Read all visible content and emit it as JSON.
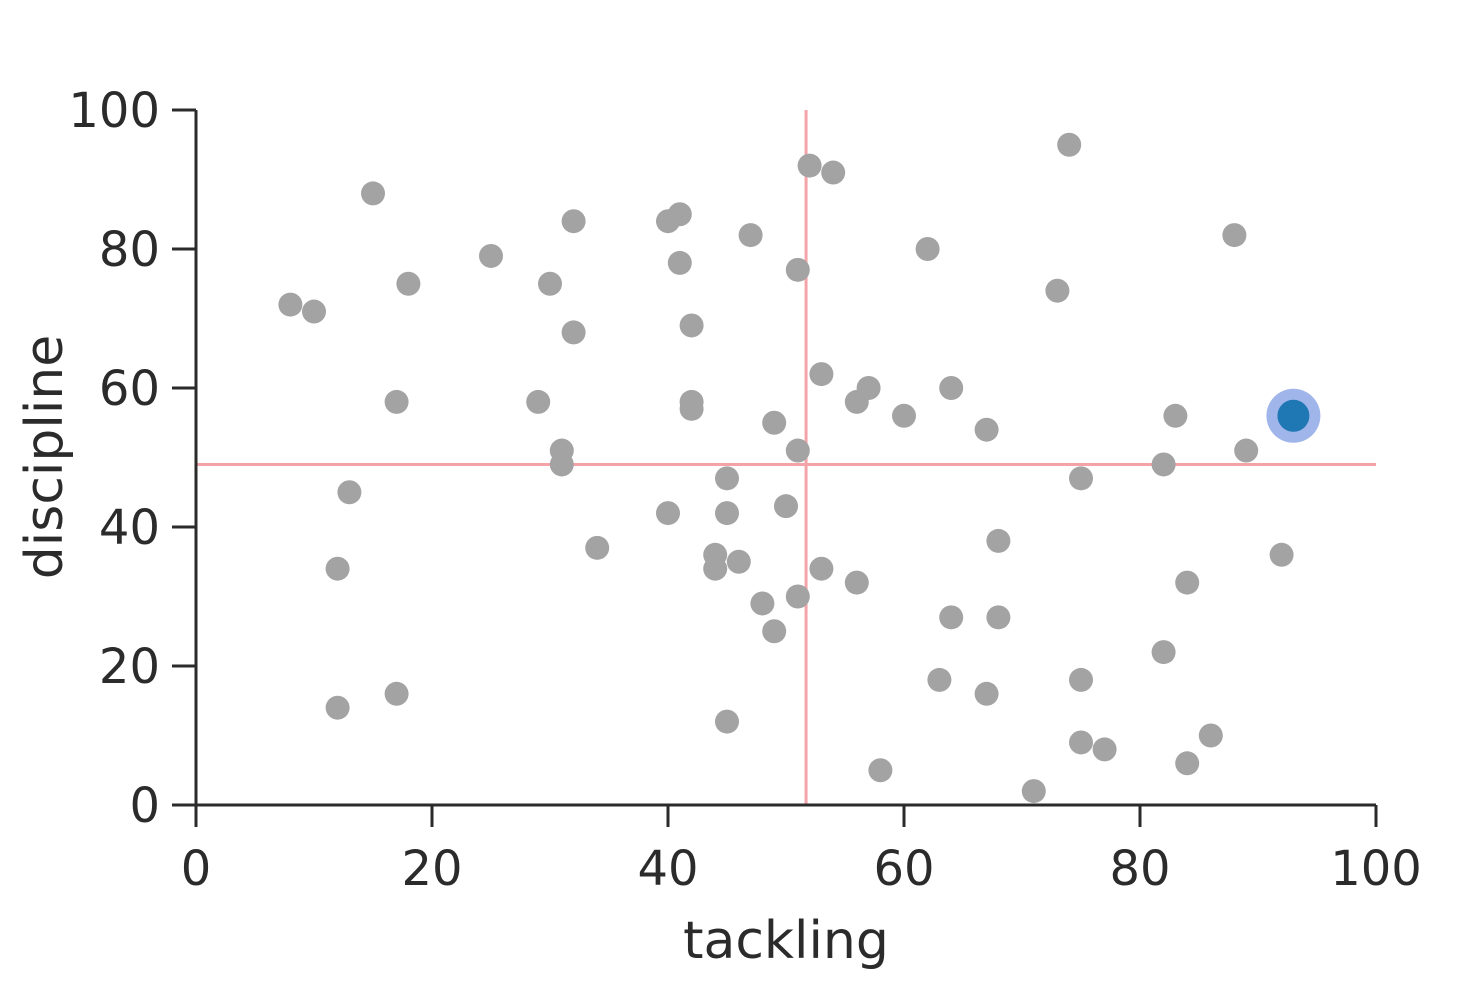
{
  "chart_data": {
    "type": "scatter",
    "xlabel": "tackling",
    "ylabel": "discipline",
    "xlim": [
      0,
      100
    ],
    "ylim": [
      0,
      100
    ],
    "xticks": [
      0,
      20,
      40,
      60,
      80,
      100
    ],
    "yticks": [
      0,
      20,
      40,
      60,
      80,
      100
    ],
    "grid": false,
    "reference_lines": {
      "x": 51.7,
      "y": 49
    },
    "reference_line_color": "#f4a3a8",
    "point_color": "#a3a3a3",
    "highlight_color": "#1f77b4",
    "highlight_halo_color": "#8fa8e6",
    "points": [
      [
        74,
        95
      ],
      [
        52,
        92
      ],
      [
        54,
        91
      ],
      [
        15,
        88
      ],
      [
        41,
        85
      ],
      [
        40,
        84
      ],
      [
        32,
        84
      ],
      [
        88,
        82
      ],
      [
        47,
        82
      ],
      [
        62,
        80
      ],
      [
        25,
        79
      ],
      [
        41,
        78
      ],
      [
        51,
        77
      ],
      [
        18,
        75
      ],
      [
        30,
        75
      ],
      [
        73,
        74
      ],
      [
        8,
        72
      ],
      [
        10,
        71
      ],
      [
        42,
        69
      ],
      [
        32,
        68
      ],
      [
        53,
        62
      ],
      [
        57,
        60
      ],
      [
        64,
        60
      ],
      [
        17,
        58
      ],
      [
        29,
        58
      ],
      [
        42,
        58
      ],
      [
        56,
        58
      ],
      [
        42,
        57
      ],
      [
        60,
        56
      ],
      [
        83,
        56
      ],
      [
        49,
        55
      ],
      [
        67,
        54
      ],
      [
        31,
        51
      ],
      [
        51,
        51
      ],
      [
        89,
        51
      ],
      [
        31,
        49
      ],
      [
        82,
        49
      ],
      [
        45,
        47
      ],
      [
        75,
        47
      ],
      [
        13,
        45
      ],
      [
        50,
        43
      ],
      [
        40,
        42
      ],
      [
        45,
        42
      ],
      [
        68,
        38
      ],
      [
        34,
        37
      ],
      [
        92,
        36
      ],
      [
        44,
        36
      ],
      [
        46,
        35
      ],
      [
        12,
        34
      ],
      [
        44,
        34
      ],
      [
        53,
        34
      ],
      [
        56,
        32
      ],
      [
        84,
        32
      ],
      [
        51,
        30
      ],
      [
        48,
        29
      ],
      [
        64,
        27
      ],
      [
        68,
        27
      ],
      [
        49,
        25
      ],
      [
        82,
        22
      ],
      [
        63,
        18
      ],
      [
        75,
        18
      ],
      [
        17,
        16
      ],
      [
        67,
        16
      ],
      [
        12,
        14
      ],
      [
        45,
        12
      ],
      [
        86,
        10
      ],
      [
        75,
        9
      ],
      [
        77,
        8
      ],
      [
        84,
        6
      ],
      [
        58,
        5
      ],
      [
        71,
        2
      ]
    ],
    "highlighted_point": [
      93,
      56
    ]
  }
}
